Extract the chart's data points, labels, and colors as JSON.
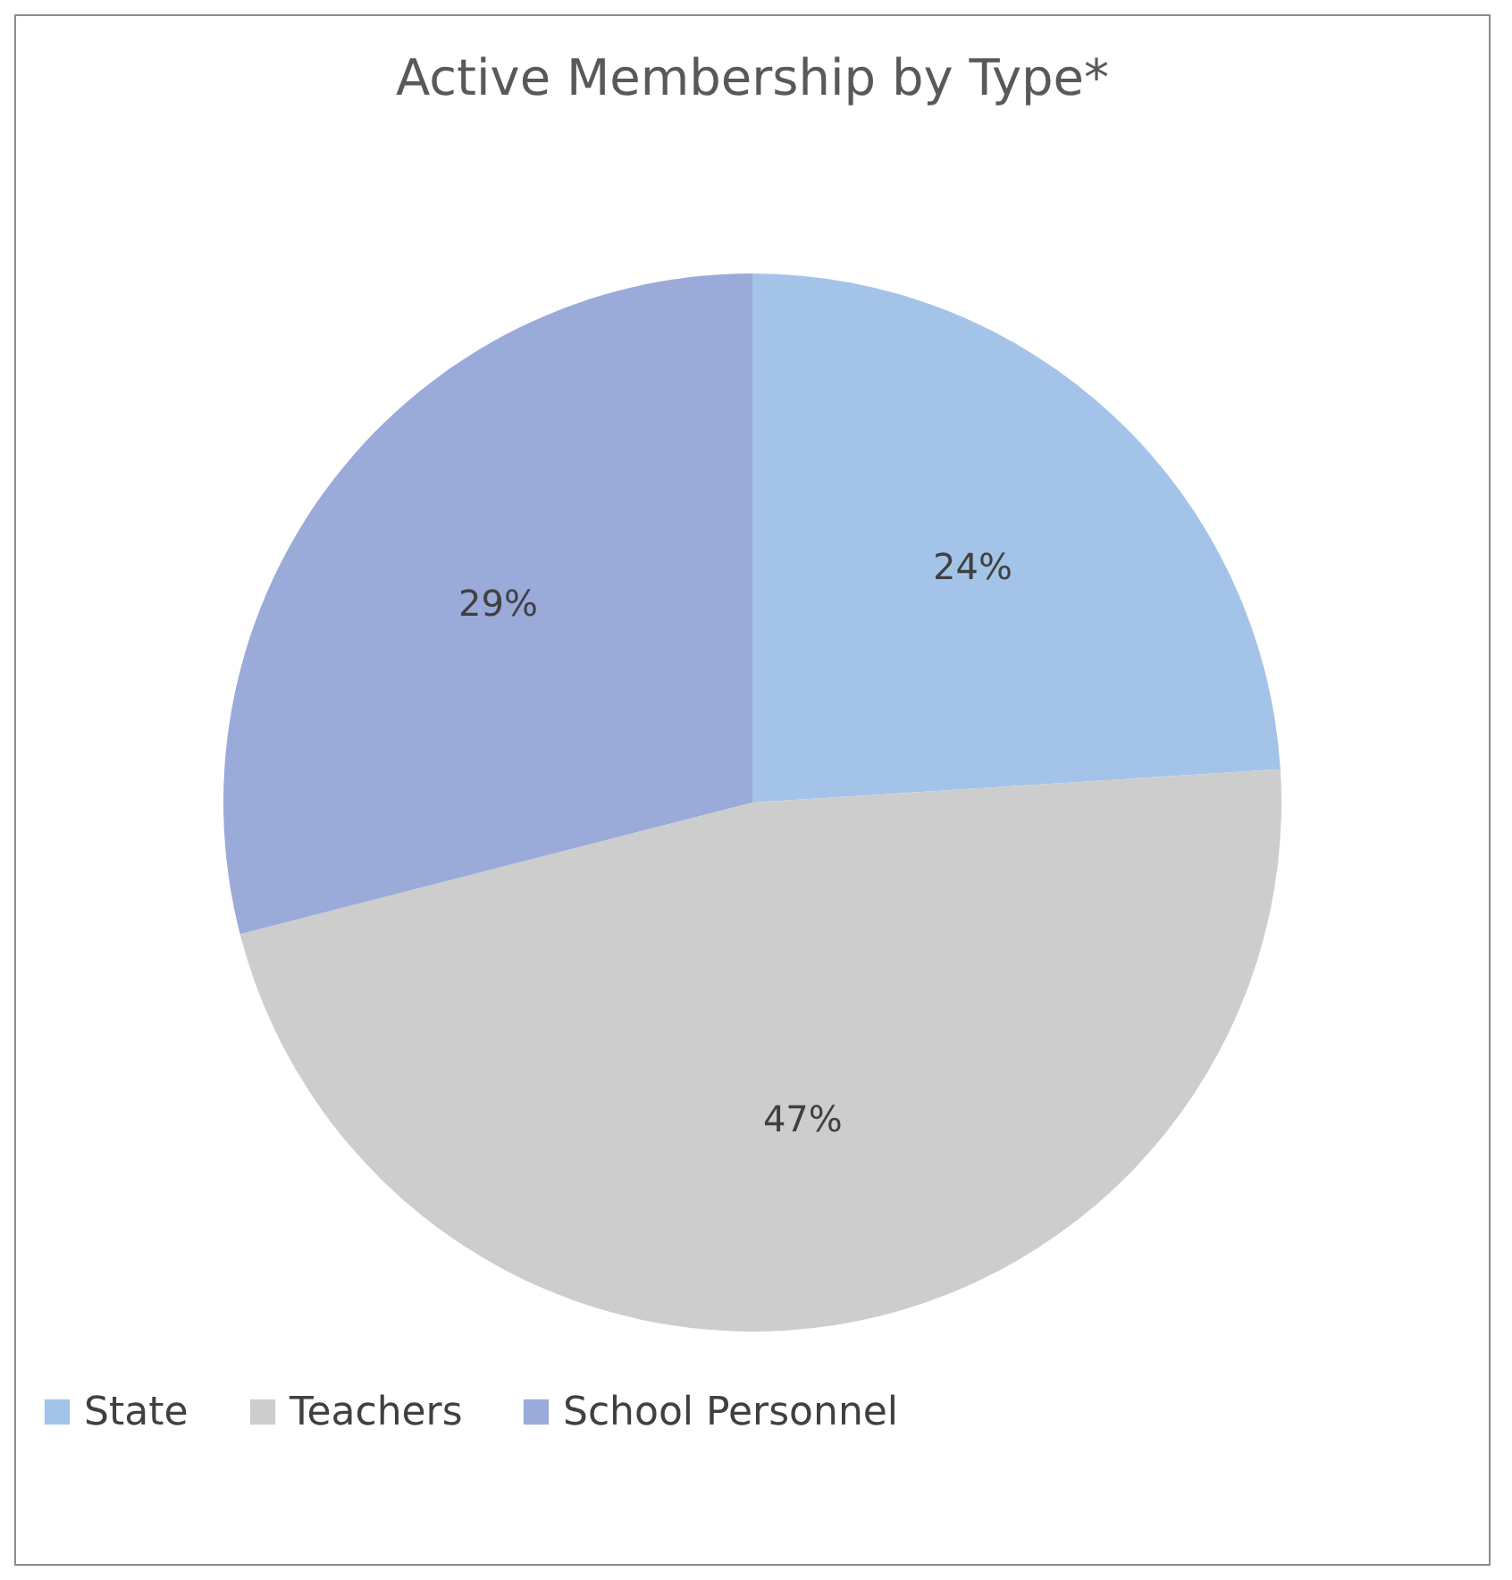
{
  "chart_data": {
    "type": "pie",
    "title": "Active Membership by Type*",
    "categories": [
      "State",
      "Teachers",
      "School Personnel"
    ],
    "values": [
      24,
      47,
      29
    ],
    "colors": [
      "#a3c4e8",
      "#cdcdcd",
      "#9aaad9"
    ],
    "value_labels": [
      "24%",
      "47%",
      "29%"
    ],
    "legend": "bottom"
  }
}
